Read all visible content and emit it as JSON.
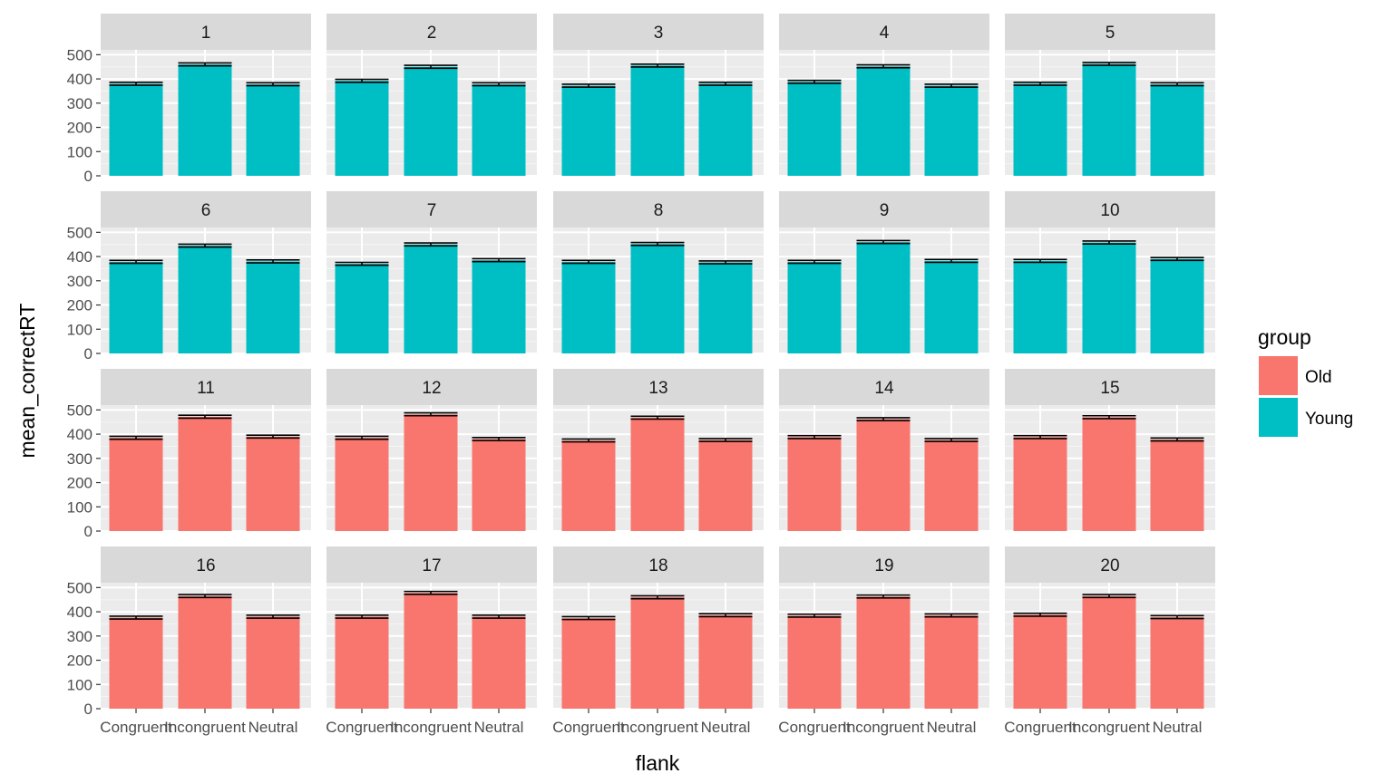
{
  "chart_data": {
    "type": "bar",
    "facet_layout": {
      "rows": 4,
      "cols": 5
    },
    "xlabel": "flank",
    "ylabel": "mean_correctRT",
    "categories": [
      "Congruent",
      "Incongruent",
      "Neutral"
    ],
    "y_ticks": [
      0,
      100,
      200,
      300,
      400,
      500
    ],
    "ylim": [
      0,
      520
    ],
    "grid": true,
    "legend": {
      "title": "group",
      "position": "right",
      "entries": [
        {
          "name": "Old",
          "color": "#F8766D"
        },
        {
          "name": "Young",
          "color": "#00BFC4"
        }
      ]
    },
    "panels": [
      {
        "label": "1",
        "group": "Young",
        "values": [
          380,
          460,
          378
        ],
        "errors": [
          6,
          6,
          6
        ]
      },
      {
        "label": "2",
        "group": "Young",
        "values": [
          392,
          450,
          378
        ],
        "errors": [
          6,
          6,
          6
        ]
      },
      {
        "label": "3",
        "group": "Young",
        "values": [
          372,
          455,
          380
        ],
        "errors": [
          6,
          6,
          6
        ]
      },
      {
        "label": "4",
        "group": "Young",
        "values": [
          388,
          452,
          372
        ],
        "errors": [
          6,
          6,
          6
        ]
      },
      {
        "label": "5",
        "group": "Young",
        "values": [
          380,
          462,
          378
        ],
        "errors": [
          6,
          6,
          6
        ]
      },
      {
        "label": "6",
        "group": "Young",
        "values": [
          378,
          445,
          380
        ],
        "errors": [
          6,
          6,
          6
        ]
      },
      {
        "label": "7",
        "group": "Young",
        "values": [
          370,
          450,
          385
        ],
        "errors": [
          6,
          6,
          6
        ]
      },
      {
        "label": "8",
        "group": "Young",
        "values": [
          378,
          452,
          376
        ],
        "errors": [
          6,
          6,
          6
        ]
      },
      {
        "label": "9",
        "group": "Young",
        "values": [
          378,
          460,
          382
        ],
        "errors": [
          6,
          6,
          6
        ]
      },
      {
        "label": "10",
        "group": "Young",
        "values": [
          382,
          458,
          390
        ],
        "errors": [
          6,
          6,
          6
        ]
      },
      {
        "label": "11",
        "group": "Old",
        "values": [
          385,
          472,
          390
        ],
        "errors": [
          6,
          6,
          6
        ]
      },
      {
        "label": "12",
        "group": "Old",
        "values": [
          385,
          482,
          380
        ],
        "errors": [
          6,
          6,
          6
        ]
      },
      {
        "label": "13",
        "group": "Old",
        "values": [
          374,
          468,
          376
        ],
        "errors": [
          6,
          6,
          6
        ]
      },
      {
        "label": "14",
        "group": "Old",
        "values": [
          388,
          462,
          376
        ],
        "errors": [
          6,
          6,
          6
        ]
      },
      {
        "label": "15",
        "group": "Old",
        "values": [
          388,
          470,
          378
        ],
        "errors": [
          6,
          6,
          6
        ]
      },
      {
        "label": "16",
        "group": "Old",
        "values": [
          376,
          465,
          380
        ],
        "errors": [
          6,
          6,
          6
        ]
      },
      {
        "label": "17",
        "group": "Old",
        "values": [
          380,
          478,
          380
        ],
        "errors": [
          6,
          6,
          6
        ]
      },
      {
        "label": "18",
        "group": "Old",
        "values": [
          374,
          460,
          386
        ],
        "errors": [
          6,
          6,
          6
        ]
      },
      {
        "label": "19",
        "group": "Old",
        "values": [
          384,
          463,
          385
        ],
        "errors": [
          6,
          6,
          6
        ]
      },
      {
        "label": "20",
        "group": "Old",
        "values": [
          388,
          465,
          378
        ],
        "errors": [
          6,
          6,
          6
        ]
      }
    ],
    "colors": {
      "panel_bg": "#EBEBEB",
      "strip_bg": "#D9D9D9",
      "grid_major": "#FFFFFF",
      "grid_minor": "#F5F5F5",
      "errorbar": "#000000"
    }
  }
}
